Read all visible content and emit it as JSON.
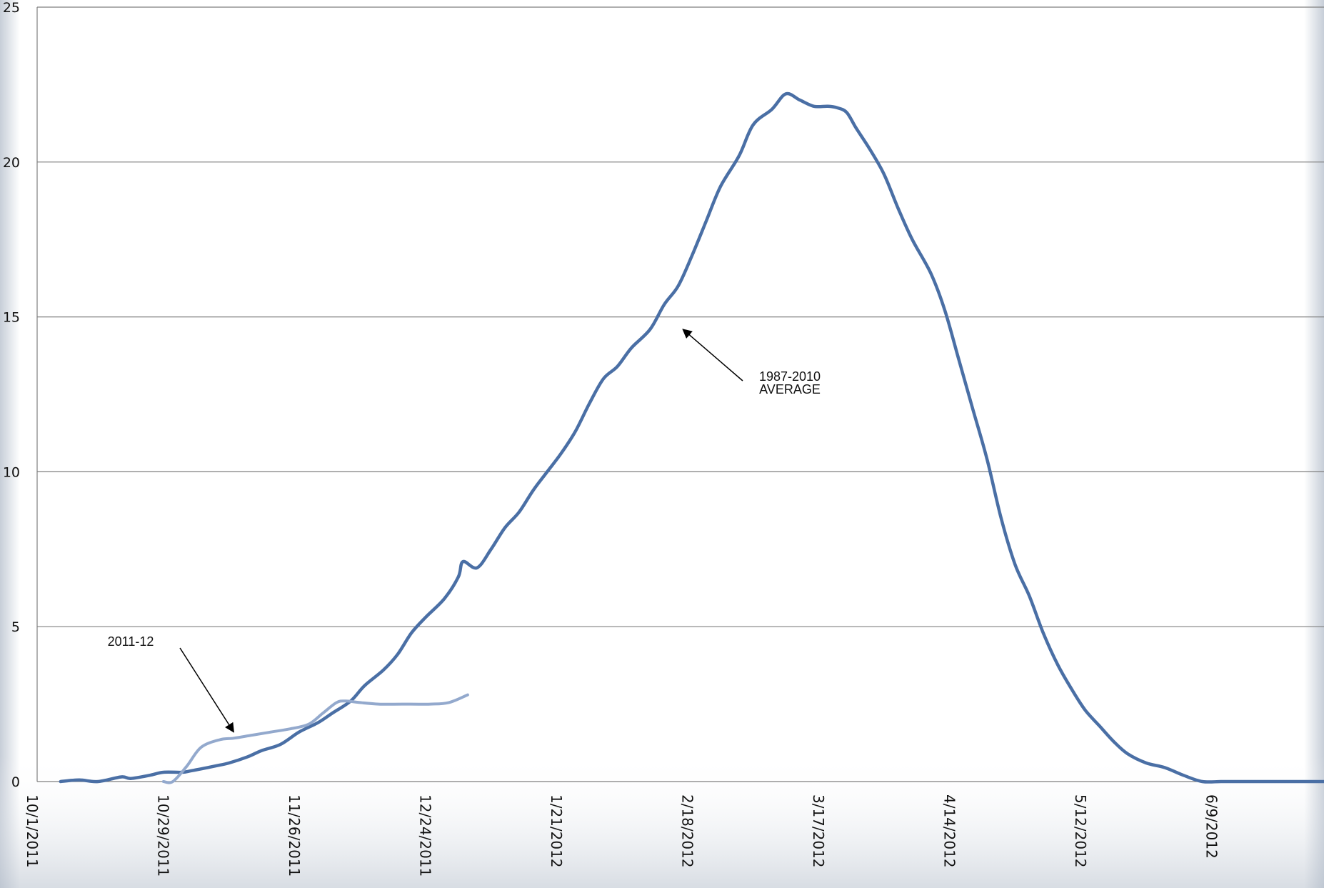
{
  "chart_data": {
    "type": "line",
    "title": "",
    "xlabel": "",
    "ylabel": "",
    "ylim": [
      0,
      25
    ],
    "xlim": [
      "10/1/2011",
      "7/2/2012"
    ],
    "y_ticks": [
      "0",
      "5",
      "10",
      "15",
      "20",
      "25"
    ],
    "x_tick_labels": [
      "10/1/2011",
      "10/29/2011",
      "11/26/2011",
      "12/24/2011",
      "1/21/2012",
      "2/18/2012",
      "3/17/2012",
      "4/14/2012",
      "5/12/2012",
      "6/9/2012"
    ],
    "grid": "horizontal",
    "legend": "none",
    "colors": {
      "avg": "#4a6fa5",
      "season": "#93a9cd",
      "grid": "#7f7f7f"
    },
    "series": [
      {
        "key": "avg",
        "x": [
          "2011-10-06",
          "2011-10-10",
          "2011-10-14",
          "2011-10-19",
          "2011-10-21",
          "2011-10-25",
          "2011-10-28",
          "2011-11-01",
          "2011-11-03",
          "2011-11-08",
          "2011-11-11",
          "2011-11-15",
          "2011-11-18",
          "2011-11-22",
          "2011-11-26",
          "2011-11-30",
          "2011-12-03",
          "2011-12-07",
          "2011-12-10",
          "2011-12-14",
          "2011-12-17",
          "2011-12-20",
          "2011-12-23",
          "2011-12-27",
          "2011-12-30",
          "2011-12-31",
          "2012-01-03",
          "2012-01-06",
          "2012-01-09",
          "2012-01-12",
          "2012-01-15",
          "2012-01-18",
          "2012-01-21",
          "2012-01-24",
          "2012-01-27",
          "2012-01-30",
          "2012-02-02",
          "2012-02-05",
          "2012-02-09",
          "2012-02-12",
          "2012-02-15",
          "2012-02-18",
          "2012-02-21",
          "2012-02-24",
          "2012-02-28",
          "2012-03-02",
          "2012-03-06",
          "2012-03-09",
          "2012-03-12",
          "2012-03-15",
          "2012-03-18",
          "2012-03-20",
          "2012-03-22",
          "2012-03-24",
          "2012-03-27",
          "2012-03-30",
          "2012-04-02",
          "2012-04-05",
          "2012-04-09",
          "2012-04-12",
          "2012-04-15",
          "2012-04-18",
          "2012-04-21",
          "2012-04-24",
          "2012-04-27",
          "2012-04-30",
          "2012-05-03",
          "2012-05-06",
          "2012-05-09",
          "2012-05-12",
          "2012-05-15",
          "2012-05-18",
          "2012-05-21",
          "2012-05-25",
          "2012-05-29",
          "2012-06-02",
          "2012-06-06",
          "2012-06-10",
          "2012-06-14",
          "2012-06-17",
          "2012-06-20",
          "2012-06-24",
          "2012-06-27",
          "2012-07-02"
        ],
        "y": [
          0.0,
          0.05,
          0.0,
          0.15,
          0.1,
          0.2,
          0.3,
          0.3,
          0.35,
          0.5,
          0.6,
          0.8,
          1.0,
          1.2,
          1.6,
          1.9,
          2.2,
          2.6,
          3.1,
          3.6,
          4.1,
          4.8,
          5.3,
          5.9,
          6.6,
          7.1,
          6.9,
          7.5,
          8.2,
          8.7,
          9.4,
          10.0,
          10.6,
          11.3,
          12.2,
          13.0,
          13.4,
          14.0,
          14.6,
          15.4,
          16.0,
          17.0,
          18.1,
          19.2,
          20.2,
          21.2,
          21.7,
          22.2,
          22.0,
          21.8,
          21.8,
          21.75,
          21.6,
          21.1,
          20.4,
          19.6,
          18.5,
          17.5,
          16.4,
          15.2,
          13.6,
          12.0,
          10.4,
          8.5,
          7.0,
          6.0,
          4.8,
          3.8,
          3.0,
          2.3,
          1.8,
          1.3,
          0.9,
          0.6,
          0.45,
          0.2,
          0.0,
          0.0,
          0.0,
          0.0,
          0.0,
          0.0,
          0.0,
          0.0
        ]
      },
      {
        "key": "season",
        "x": [
          "2011-10-28",
          "2011-10-30",
          "2011-11-02",
          "2011-11-05",
          "2011-11-09",
          "2011-11-12",
          "2011-11-16",
          "2011-11-20",
          "2011-11-24",
          "2011-11-28",
          "2011-12-01",
          "2011-12-04",
          "2011-12-06",
          "2011-12-09",
          "2011-12-13",
          "2011-12-18",
          "2011-12-24",
          "2011-12-28",
          "2012-01-01"
        ],
        "y": [
          0.0,
          0.0,
          0.5,
          1.1,
          1.35,
          1.4,
          1.5,
          1.6,
          1.7,
          1.85,
          2.2,
          2.55,
          2.6,
          2.55,
          2.5,
          2.5,
          2.5,
          2.55,
          2.8
        ]
      }
    ],
    "annotations": [
      {
        "key": "avg",
        "lines": [
          "1987-2010",
          "AVERAGE"
        ],
        "target_date": "2012-02-16",
        "target_value": 14.6
      },
      {
        "key": "season",
        "lines": [
          "2011-12"
        ],
        "target_date": "2011-11-12",
        "target_value": 1.6
      }
    ]
  }
}
